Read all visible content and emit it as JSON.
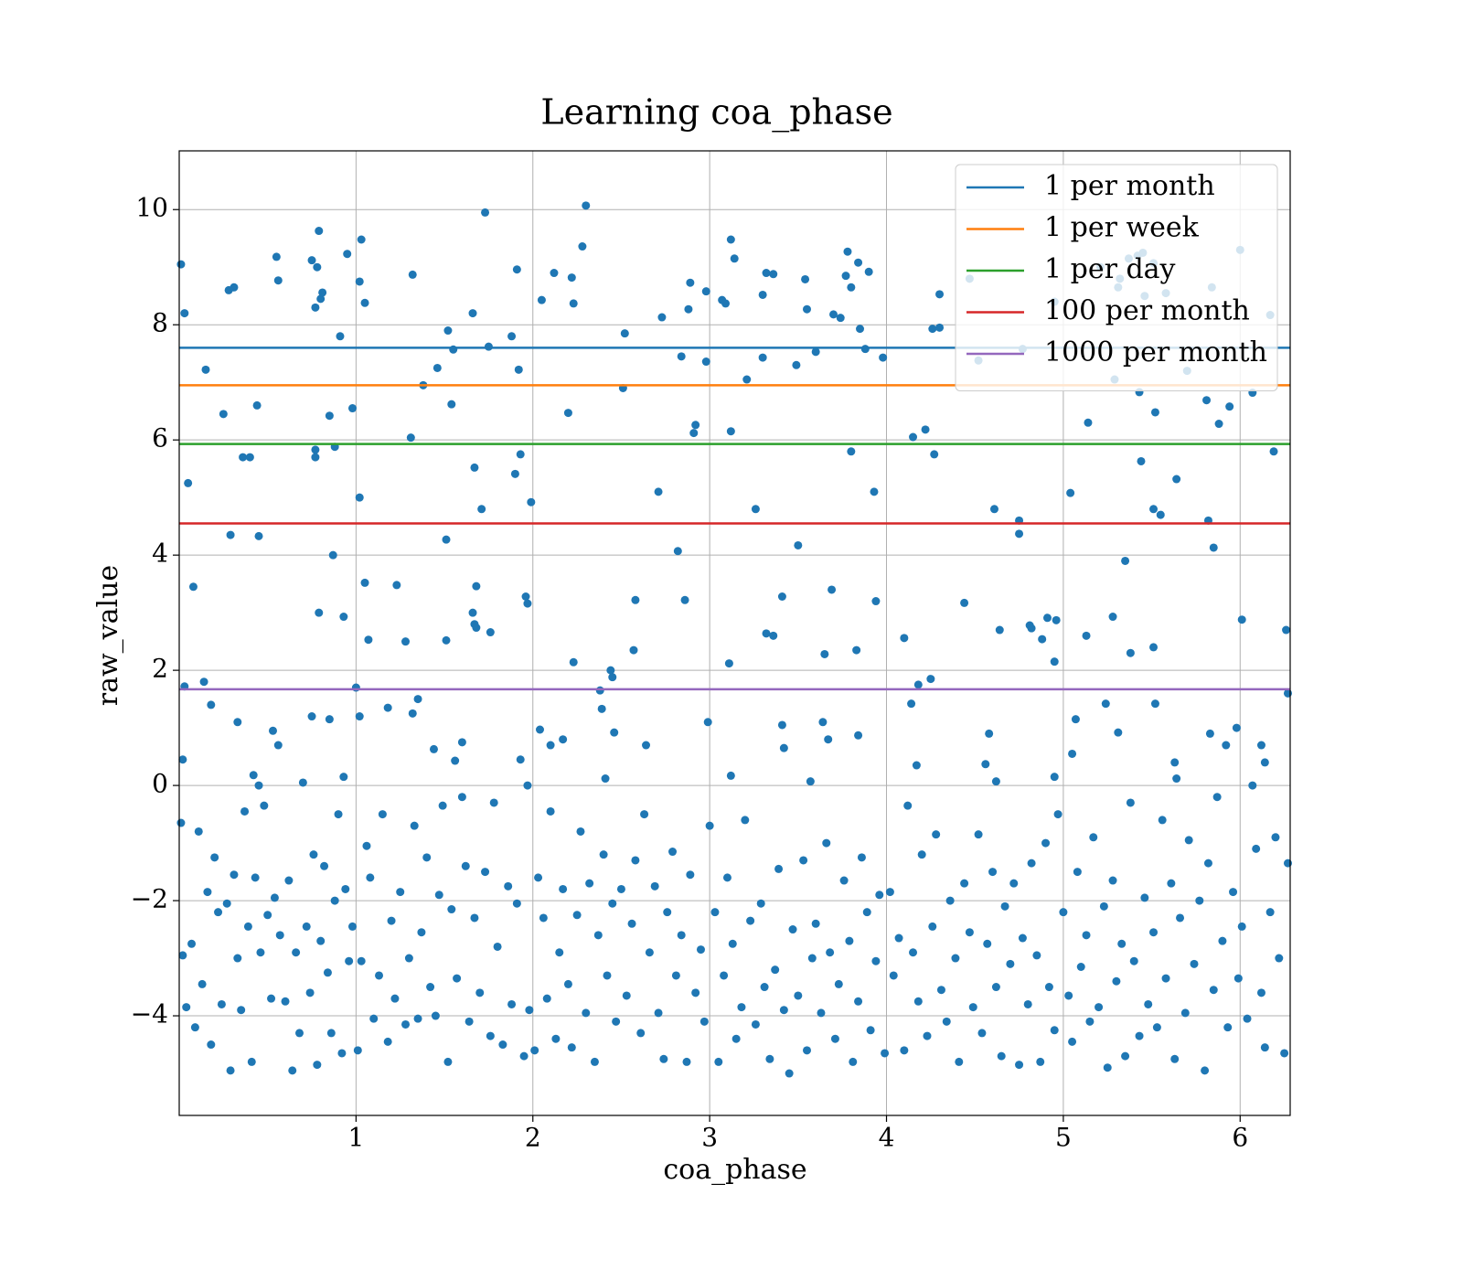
{
  "chart_data": {
    "type": "scatter",
    "title": "Learning coa_phase",
    "x_label": "coa_phase",
    "y_label": "raw_value",
    "xlim": [
      0,
      6.283
    ],
    "ylim": [
      -5.73,
      11.02
    ],
    "xticks": [
      1,
      2,
      3,
      4,
      5,
      6
    ],
    "yticks": [
      {
        "value": -4,
        "label": "−4"
      },
      {
        "value": -2,
        "label": "−2"
      },
      0,
      2,
      4,
      6,
      8,
      10
    ],
    "grid": true,
    "legend_loc": "upper right",
    "points": {
      "color": "#1f77b4",
      "x": [
        0.01,
        0.03,
        0.05,
        0.08,
        0.15,
        0.25,
        0.28,
        0.31,
        0.29,
        0.36,
        0.4,
        0.44,
        0.45,
        0.55,
        0.56,
        0.75,
        0.78,
        0.79,
        0.77,
        0.8,
        0.81,
        0.77,
        0.77,
        0.79,
        0.85,
        0.88,
        0.87,
        0.91,
        0.93,
        0.95,
        0.98,
        1.03,
        1.02,
        1.05,
        1.02,
        1.05,
        1.07,
        1.0,
        1.02,
        1.23,
        1.28,
        1.32,
        1.31,
        1.38,
        1.46,
        1.52,
        1.55,
        1.54,
        1.51,
        1.51,
        1.66,
        1.67,
        1.68,
        1.66,
        1.67,
        1.68,
        1.71,
        1.73,
        1.75,
        1.76,
        1.88,
        1.9,
        1.91,
        1.92,
        1.93,
        1.96,
        1.97,
        1.99,
        2.05,
        2.12,
        2.2,
        2.22,
        2.23,
        2.23,
        2.28,
        2.3,
        2.38,
        2.44,
        2.45,
        2.52,
        2.51,
        2.57,
        2.58,
        2.71,
        2.73,
        2.82,
        2.84,
        2.86,
        2.88,
        2.89,
        2.91,
        2.92,
        2.98,
        2.98,
        3.07,
        3.09,
        3.11,
        3.12,
        3.12,
        3.14,
        3.21,
        3.26,
        3.3,
        3.3,
        3.32,
        3.36,
        3.32,
        3.36,
        3.41,
        3.49,
        3.5,
        3.54,
        3.55,
        3.6,
        3.65,
        3.7,
        3.69,
        3.74,
        3.78,
        3.77,
        3.8,
        3.84,
        3.85,
        3.83,
        3.8,
        3.88,
        3.9,
        3.93,
        3.94,
        3.98,
        4.1,
        4.18,
        4.15,
        4.22,
        4.26,
        4.3,
        4.3,
        4.27,
        4.25,
        4.44,
        4.47,
        4.52,
        4.61,
        4.64,
        4.77,
        4.75,
        4.75,
        4.81,
        4.82,
        4.88,
        4.91,
        4.96,
        4.95,
        4.95,
        5.04,
        5.13,
        5.14,
        5.21,
        5.28,
        5.29,
        5.31,
        5.32,
        5.37,
        5.35,
        5.38,
        5.42,
        5.43,
        5.44,
        5.45,
        5.46,
        5.51,
        5.52,
        5.51,
        5.51,
        5.55,
        5.58,
        5.64,
        5.7,
        5.81,
        5.82,
        5.85,
        5.84,
        5.88,
        5.94,
        6.0,
        6.01,
        6.07,
        6.17,
        6.19,
        6.26,
        0.02,
        0.03,
        0.14,
        0.18,
        0.33,
        0.42,
        0.45,
        0.53,
        0.56,
        0.75,
        0.85,
        0.93,
        1.18,
        1.32,
        1.35,
        1.44,
        1.56,
        1.6,
        1.97,
        2.04,
        2.1,
        2.17,
        2.39,
        2.41,
        2.46,
        2.64,
        2.99,
        3.12,
        3.42,
        3.41,
        3.57,
        3.64,
        3.67,
        3.84,
        4.14,
        4.17,
        4.56,
        4.58,
        4.62,
        4.95,
        5.05,
        5.07,
        5.24,
        5.31,
        5.52,
        5.63,
        5.64,
        5.83,
        5.92,
        5.98,
        6.12,
        6.14,
        6.27,
        0.01,
        0.02,
        0.04,
        0.07,
        0.09,
        0.11,
        0.13,
        0.16,
        0.18,
        0.2,
        0.22,
        0.24,
        0.27,
        0.29,
        0.31,
        0.33,
        0.35,
        0.37,
        0.39,
        0.41,
        0.43,
        0.46,
        0.48,
        0.5,
        0.52,
        0.54,
        0.57,
        0.6,
        0.62,
        0.64,
        0.66,
        0.68,
        0.7,
        0.72,
        0.74,
        0.76,
        0.78,
        0.8,
        0.82,
        0.84,
        0.86,
        0.88,
        0.9,
        0.92,
        0.94,
        0.96,
        0.98,
        1.01,
        1.03,
        1.06,
        1.08,
        1.1,
        1.13,
        1.15,
        1.18,
        1.2,
        1.22,
        1.25,
        1.28,
        1.3,
        1.33,
        1.35,
        1.37,
        1.4,
        1.42,
        1.45,
        1.47,
        1.49,
        1.52,
        1.54,
        1.57,
        1.6,
        1.62,
        1.64,
        1.67,
        1.7,
        1.73,
        1.76,
        1.78,
        1.8,
        1.83,
        1.86,
        1.88,
        1.91,
        1.93,
        1.95,
        1.98,
        2.01,
        2.03,
        2.06,
        2.08,
        2.1,
        2.13,
        2.15,
        2.17,
        2.2,
        2.22,
        2.25,
        2.27,
        2.3,
        2.32,
        2.35,
        2.37,
        2.4,
        2.42,
        2.45,
        2.47,
        2.5,
        2.53,
        2.56,
        2.58,
        2.61,
        2.63,
        2.66,
        2.69,
        2.71,
        2.74,
        2.76,
        2.79,
        2.81,
        2.84,
        2.87,
        2.89,
        2.92,
        2.95,
        2.97,
        3.0,
        3.03,
        3.05,
        3.08,
        3.1,
        3.13,
        3.15,
        3.18,
        3.2,
        3.23,
        3.26,
        3.29,
        3.31,
        3.34,
        3.37,
        3.39,
        3.42,
        3.45,
        3.47,
        3.5,
        3.53,
        3.55,
        3.58,
        3.6,
        3.63,
        3.66,
        3.68,
        3.71,
        3.73,
        3.76,
        3.79,
        3.81,
        3.84,
        3.86,
        3.89,
        3.91,
        3.94,
        3.96,
        3.99,
        4.02,
        4.04,
        4.07,
        4.1,
        4.12,
        4.15,
        4.18,
        4.2,
        4.23,
        4.26,
        4.28,
        4.31,
        4.34,
        4.36,
        4.39,
        4.41,
        4.44,
        4.47,
        4.49,
        4.52,
        4.54,
        4.57,
        4.6,
        4.62,
        4.65,
        4.67,
        4.7,
        4.72,
        4.75,
        4.77,
        4.8,
        4.82,
        4.85,
        4.87,
        4.9,
        4.92,
        4.95,
        4.97,
        5.0,
        5.03,
        5.05,
        5.08,
        5.1,
        5.13,
        5.15,
        5.17,
        5.2,
        5.23,
        5.25,
        5.28,
        5.3,
        5.33,
        5.35,
        5.38,
        5.4,
        5.43,
        5.46,
        5.48,
        5.51,
        5.53,
        5.56,
        5.58,
        5.61,
        5.63,
        5.66,
        5.69,
        5.71,
        5.74,
        5.77,
        5.8,
        5.82,
        5.85,
        5.87,
        5.9,
        5.93,
        5.96,
        5.99,
        6.01,
        6.04,
        6.07,
        6.09,
        6.12,
        6.14,
        6.17,
        6.2,
        6.22,
        6.25,
        6.27
      ],
      "y": [
        9.05,
        8.2,
        5.25,
        3.45,
        7.22,
        6.45,
        8.6,
        8.65,
        4.35,
        5.7,
        5.7,
        6.6,
        4.33,
        9.18,
        8.77,
        9.12,
        9.0,
        9.63,
        8.3,
        8.45,
        8.56,
        5.83,
        5.7,
        3.0,
        6.42,
        5.88,
        4.0,
        7.8,
        2.93,
        9.23,
        6.55,
        9.48,
        8.75,
        8.38,
        5.0,
        3.52,
        2.53,
        1.7,
        1.2,
        3.48,
        2.5,
        8.87,
        6.04,
        6.95,
        7.25,
        7.9,
        7.57,
        6.62,
        4.27,
        2.52,
        8.2,
        5.52,
        3.46,
        3.0,
        2.8,
        2.74,
        4.8,
        9.95,
        7.62,
        2.66,
        7.8,
        5.41,
        8.96,
        7.22,
        5.75,
        3.28,
        3.16,
        4.92,
        8.43,
        8.9,
        6.47,
        8.82,
        8.37,
        2.14,
        9.36,
        10.07,
        1.65,
        2.0,
        1.88,
        7.85,
        6.9,
        2.35,
        3.22,
        5.1,
        8.13,
        4.07,
        7.45,
        3.22,
        8.27,
        8.73,
        6.12,
        6.26,
        8.58,
        7.36,
        8.43,
        8.37,
        2.12,
        6.15,
        9.48,
        9.15,
        7.05,
        4.8,
        8.52,
        7.43,
        8.9,
        8.88,
        2.64,
        2.6,
        3.28,
        7.3,
        4.17,
        8.79,
        8.27,
        7.53,
        2.28,
        8.18,
        3.4,
        8.12,
        9.27,
        8.85,
        8.65,
        9.08,
        7.93,
        2.35,
        5.8,
        7.58,
        8.92,
        5.1,
        3.2,
        7.43,
        2.56,
        1.75,
        6.05,
        6.18,
        7.93,
        7.95,
        8.53,
        5.75,
        1.85,
        3.17,
        8.8,
        7.38,
        4.8,
        2.7,
        7.58,
        4.6,
        4.37,
        2.78,
        2.73,
        2.54,
        2.91,
        2.87,
        8.4,
        2.15,
        5.08,
        2.6,
        6.3,
        9.0,
        2.93,
        7.05,
        8.65,
        8.8,
        9.15,
        3.9,
        2.3,
        9.2,
        6.83,
        5.63,
        9.25,
        8.5,
        9.07,
        6.48,
        4.8,
        2.4,
        4.7,
        8.55,
        5.32,
        7.2,
        6.69,
        4.6,
        4.13,
        8.65,
        6.28,
        6.58,
        9.3,
        2.88,
        6.82,
        8.17,
        5.8,
        2.7,
        0.45,
        1.72,
        1.8,
        1.4,
        1.1,
        0.18,
        0.0,
        0.95,
        0.7,
        1.2,
        1.15,
        0.15,
        1.35,
        1.25,
        1.5,
        0.63,
        0.43,
        0.75,
        0.0,
        0.97,
        0.7,
        0.8,
        1.33,
        0.12,
        0.92,
        0.7,
        1.1,
        0.17,
        0.65,
        1.05,
        0.07,
        1.1,
        0.8,
        0.87,
        1.42,
        0.35,
        0.37,
        0.9,
        0.07,
        0.15,
        0.55,
        1.15,
        1.42,
        0.92,
        1.42,
        0.4,
        0.12,
        0.9,
        0.7,
        1.0,
        0.7,
        0.4,
        1.6,
        -0.65,
        -2.95,
        -3.85,
        -2.75,
        -4.2,
        -0.8,
        -3.45,
        -1.85,
        -4.5,
        -1.25,
        -2.2,
        -3.8,
        -2.05,
        -4.95,
        -1.55,
        -3.0,
        -3.9,
        -0.45,
        -2.45,
        -4.8,
        -1.6,
        -2.9,
        -0.35,
        -2.25,
        -3.7,
        -1.95,
        -2.6,
        -3.75,
        -1.65,
        -4.95,
        -2.9,
        -4.3,
        0.05,
        -2.45,
        -3.6,
        -1.2,
        -4.85,
        -2.7,
        -1.4,
        -3.25,
        -4.3,
        -2.0,
        -0.5,
        -4.65,
        -1.8,
        -3.05,
        -2.45,
        -4.6,
        -3.05,
        -1.05,
        -1.6,
        -4.05,
        -3.3,
        -0.5,
        -4.45,
        -2.35,
        -3.7,
        -1.85,
        -4.15,
        -3.0,
        -0.7,
        -4.05,
        -2.55,
        -1.25,
        -3.5,
        -4.0,
        -1.9,
        -0.35,
        -4.8,
        -2.15,
        -3.35,
        -0.2,
        -1.4,
        -4.1,
        -2.3,
        -3.6,
        -1.5,
        -4.35,
        -0.3,
        -2.8,
        -4.5,
        -1.75,
        -3.8,
        -2.05,
        0.45,
        -4.7,
        -3.9,
        -4.6,
        -1.6,
        -2.3,
        -3.7,
        -0.45,
        -4.4,
        -2.9,
        -1.8,
        -3.45,
        -4.55,
        -2.25,
        -0.8,
        -3.95,
        -1.7,
        -4.8,
        -2.6,
        -1.2,
        -3.3,
        -2.05,
        -4.1,
        -1.8,
        -3.65,
        -2.4,
        -1.3,
        -4.3,
        -0.5,
        -2.9,
        -1.75,
        -3.95,
        -4.75,
        -2.2,
        -1.15,
        -3.3,
        -2.6,
        -4.8,
        -1.55,
        -3.6,
        -2.85,
        -4.1,
        -0.7,
        -2.2,
        -4.8,
        -3.3,
        -1.6,
        -2.75,
        -4.4,
        -3.85,
        -0.6,
        -2.35,
        -4.15,
        -2.05,
        -3.5,
        -4.75,
        -3.2,
        -1.45,
        -3.9,
        -5.0,
        -2.5,
        -3.65,
        -1.3,
        -4.6,
        -3.0,
        -2.4,
        -3.95,
        -1.0,
        -2.9,
        -4.4,
        -3.45,
        -1.65,
        -2.7,
        -4.8,
        -3.75,
        -1.25,
        -2.2,
        -4.25,
        -3.05,
        -1.9,
        -4.65,
        -1.85,
        -3.3,
        -2.65,
        -4.6,
        -0.35,
        -2.9,
        -3.75,
        -1.2,
        -4.35,
        -2.45,
        -0.85,
        -3.55,
        -4.1,
        -2.0,
        -3.0,
        -4.8,
        -1.7,
        -2.55,
        -3.85,
        -0.85,
        -4.3,
        -2.75,
        -1.5,
        -3.5,
        -4.7,
        -2.1,
        -3.1,
        -1.7,
        -4.85,
        -2.65,
        -3.8,
        -1.35,
        -2.95,
        -4.8,
        -1.0,
        -3.5,
        -4.25,
        -0.5,
        -2.2,
        -3.65,
        -4.45,
        -1.5,
        -3.15,
        -2.6,
        -4.1,
        -0.9,
        -3.85,
        -2.1,
        -4.9,
        -1.65,
        -3.4,
        -2.75,
        -4.7,
        -0.3,
        -3.05,
        -4.35,
        -1.95,
        -3.8,
        -2.55,
        -4.2,
        -0.6,
        -3.35,
        -1.7,
        -4.75,
        -2.3,
        -3.95,
        -0.95,
        -3.1,
        -2.0,
        -4.95,
        -1.35,
        -3.55,
        -0.2,
        -2.7,
        -4.2,
        -1.85,
        -3.35,
        -2.45,
        -4.05,
        0.0,
        -1.1,
        -3.6,
        -4.55,
        -2.2,
        -0.9,
        -3.0,
        -4.65,
        -1.35
      ]
    },
    "series": [
      {
        "name": "1 per month",
        "color": "#1f77b4",
        "value": 7.6
      },
      {
        "name": "1 per week",
        "color": "#ff7f0e",
        "value": 6.95
      },
      {
        "name": "1 per day",
        "color": "#2ca02c",
        "value": 5.93
      },
      {
        "name": "100 per month",
        "color": "#d62728",
        "value": 4.55
      },
      {
        "name": "1000 per month",
        "color": "#9467bd",
        "value": 1.67
      }
    ]
  }
}
